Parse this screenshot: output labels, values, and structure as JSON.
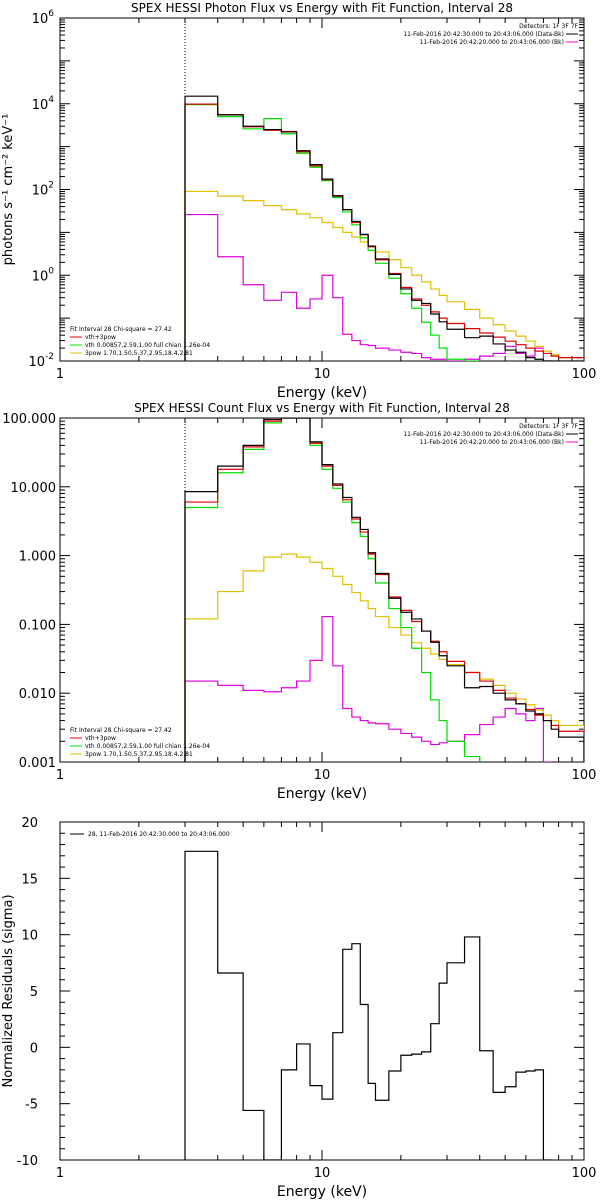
{
  "chart_data": [
    {
      "type": "line",
      "title": "SPEX HESSI Photon Flux vs Energy with Fit Function, Interval 28",
      "xlabel": "Energy (keV)",
      "ylabel": "photons s⁻¹ cm⁻² keV⁻¹",
      "xscale": "log",
      "yscale": "log",
      "xlim": [
        1,
        100
      ],
      "ylim": [
        0.01,
        1000000
      ],
      "x_ticks": [
        "1",
        "10",
        "100"
      ],
      "y_ticks": [
        {
          "base": "10",
          "exp": "6",
          "value": 1000000
        },
        {
          "base": "10",
          "exp": "4",
          "value": 10000
        },
        {
          "base": "10",
          "exp": "2",
          "value": 100
        },
        {
          "base": "10",
          "exp": "0",
          "value": 1
        },
        {
          "base": "10",
          "exp": "-2",
          "value": 0.01
        }
      ],
      "fit_range_start_keV": 3,
      "legend_top": {
        "header": "Detectors: 1F 3F 7F",
        "entries": [
          {
            "text": "11-Feb-2016 20:42:30.000 to 20:43:06.000 (Data-Bk)",
            "color": "#000000"
          },
          {
            "text": "11-Feb-2016 20:42:20.000 to 20:43:06.000 (Bk)",
            "color": "#e000e0"
          }
        ]
      },
      "legend_bottom": {
        "header": "Fit Interval 28   Chi-square = 27.42",
        "entries": [
          {
            "text": "vth+3pow",
            "color": "#e00000"
          },
          {
            "text": "vth 0.00857,2.59,1.00  full chian 1.26e-04",
            "color": "#00e000"
          },
          {
            "text": "3pow 1.70,1.50,5.37,2.95,18.4,2.81",
            "color": "#e0c000"
          }
        ]
      },
      "series": [
        {
          "role": "data",
          "color": "#000000",
          "edges": [
            3,
            4,
            5,
            6,
            7,
            8,
            9,
            10,
            11,
            12,
            13,
            14,
            15,
            16,
            18,
            20,
            22,
            24,
            26,
            28,
            30,
            35,
            40,
            45,
            50,
            55,
            60,
            65,
            70,
            75,
            80,
            100
          ],
          "values": [
            15000,
            5500,
            3000,
            2500,
            2200,
            800,
            380,
            175,
            70,
            34,
            18,
            9,
            4.8,
            2.4,
            1.05,
            0.48,
            0.26,
            0.22,
            0.125,
            0.082,
            0.055,
            0.035,
            0.038,
            0.025,
            0.018,
            0.016,
            0.012,
            0.011,
            0.01,
            0.01,
            0.01
          ]
        },
        {
          "role": "total fit",
          "color": "#e00000",
          "edges": [
            3,
            4,
            5,
            6,
            7,
            8,
            9,
            10,
            11,
            12,
            13,
            14,
            15,
            16,
            18,
            20,
            22,
            24,
            26,
            28,
            30,
            35,
            40,
            45,
            50,
            55,
            60,
            65,
            70,
            75,
            80,
            100
          ],
          "values": [
            9800,
            5600,
            2900,
            2400,
            2250,
            760,
            355,
            170,
            72,
            34,
            17,
            8.8,
            4.6,
            2.3,
            1.1,
            0.52,
            0.28,
            0.2,
            0.14,
            0.1,
            0.075,
            0.057,
            0.045,
            0.036,
            0.029,
            0.024,
            0.02,
            0.017,
            0.015,
            0.013,
            0.012
          ]
        },
        {
          "role": "thermal",
          "color": "#00e000",
          "edges": [
            3,
            4,
            5,
            6,
            7,
            8,
            9,
            10,
            11,
            12,
            13,
            14,
            15,
            16,
            18,
            20,
            22,
            24,
            26,
            28,
            30,
            35,
            40
          ],
          "values": [
            9500,
            5000,
            2600,
            4500,
            2000,
            700,
            330,
            160,
            65,
            30,
            15,
            7.5,
            3.8,
            1.9,
            0.85,
            0.37,
            0.17,
            0.08,
            0.04,
            0.02,
            0.011,
            0.0095
          ]
        },
        {
          "role": "power law",
          "color": "#e0c000",
          "edges": [
            3,
            4,
            5,
            6,
            7,
            8,
            9,
            10,
            11,
            12,
            13,
            14,
            15,
            16,
            18,
            20,
            22,
            24,
            26,
            28,
            30,
            35,
            40,
            45,
            50,
            55,
            60,
            65,
            70,
            75,
            80,
            100
          ],
          "values": [
            90,
            70,
            55,
            42,
            34,
            27,
            22,
            17,
            13,
            10,
            7.8,
            6,
            4.6,
            3.5,
            2.3,
            1.5,
            1.0,
            0.7,
            0.48,
            0.34,
            0.24,
            0.16,
            0.1,
            0.07,
            0.05,
            0.038,
            0.029,
            0.022,
            0.017,
            0.014,
            0.012
          ]
        },
        {
          "role": "background",
          "color": "#e000e0",
          "edges": [
            3,
            4,
            5,
            6,
            7,
            8,
            9,
            10,
            11,
            12,
            13,
            14,
            15,
            16,
            18,
            20,
            22,
            24,
            26,
            28,
            30,
            35,
            40,
            45,
            50,
            55,
            60,
            65,
            70,
            75
          ],
          "values": [
            26,
            2.7,
            0.6,
            0.26,
            0.4,
            0.17,
            0.28,
            1.0,
            0.3,
            0.042,
            0.03,
            0.024,
            0.023,
            0.02,
            0.018,
            0.016,
            0.015,
            0.012,
            0.011,
            0.011,
            0.01,
            0.011,
            0.013,
            0.015,
            0.022,
            0.015,
            0.013,
            0.02,
            0.01
          ]
        }
      ]
    },
    {
      "type": "line",
      "title": "SPEX HESSI Count Flux vs Energy with Fit Function, Interval 28",
      "xlabel": "Energy (keV)",
      "ylabel": "",
      "xscale": "log",
      "yscale": "log",
      "xlim": [
        1,
        100
      ],
      "ylim": [
        0.001,
        100
      ],
      "x_ticks": [
        "1",
        "10",
        "100"
      ],
      "y_ticks": [
        {
          "label": "100.000",
          "value": 100
        },
        {
          "label": "10.000",
          "value": 10
        },
        {
          "label": "1.000",
          "value": 1
        },
        {
          "label": "0.100",
          "value": 0.1
        },
        {
          "label": "0.010",
          "value": 0.01
        },
        {
          "label": "0.001",
          "value": 0.001
        }
      ],
      "fit_range_start_keV": 3,
      "legend_top": {
        "header": "Detectors: 1F 3F 7F",
        "entries": [
          {
            "text": "11-Feb-2016 20:42:30.000 to 20:43:06.000 (Data-Bk)",
            "color": "#000000"
          },
          {
            "text": "11-Feb-2016 20:42:20.000 to 20:43:06.000 (Bk)",
            "color": "#e000e0"
          }
        ]
      },
      "legend_bottom": {
        "header": "Fit Interval 28   Chi-square = 27.42",
        "entries": [
          {
            "text": "vth+3pow",
            "color": "#e00000"
          },
          {
            "text": "vth 0.00857,2.59,1.00  full chian 1.26e-04",
            "color": "#00e000"
          },
          {
            "text": "3pow 1.70,1.50,5.37,2.95,18.4,2.81",
            "color": "#e0c000"
          }
        ]
      },
      "series": [
        {
          "role": "data",
          "color": "#000000",
          "edges": [
            3,
            4,
            5,
            6,
            7,
            8,
            9,
            10,
            11,
            12,
            13,
            14,
            15,
            16,
            18,
            20,
            22,
            24,
            26,
            28,
            30,
            35,
            40,
            45,
            50,
            55,
            60,
            65,
            70,
            75,
            80,
            100
          ],
          "values": [
            8.5,
            20,
            40,
            95,
            100,
            100,
            45,
            21,
            11,
            7,
            3.6,
            2.4,
            1.1,
            0.55,
            0.24,
            0.15,
            0.12,
            0.08,
            0.055,
            0.035,
            0.025,
            0.012,
            0.0125,
            0.01,
            0.008,
            0.007,
            0.0055,
            0.005,
            0.004,
            0.003,
            0.0023
          ]
        },
        {
          "role": "total fit",
          "color": "#e00000",
          "edges": [
            3,
            4,
            5,
            6,
            7,
            8,
            9,
            10,
            11,
            12,
            13,
            14,
            15,
            16,
            18,
            20,
            22,
            24,
            26,
            28,
            30,
            35,
            40,
            45,
            50,
            55,
            60,
            65,
            70,
            75,
            80,
            100
          ],
          "values": [
            6,
            18,
            38,
            90,
            100,
            100,
            43,
            20,
            10.5,
            6.5,
            3.4,
            2.2,
            1.05,
            0.53,
            0.25,
            0.16,
            0.11,
            0.08,
            0.057,
            0.04,
            0.029,
            0.02,
            0.015,
            0.011,
            0.0085,
            0.007,
            0.0058,
            0.0048,
            0.004,
            0.0034,
            0.0028
          ]
        },
        {
          "role": "thermal",
          "color": "#00e000",
          "edges": [
            3,
            4,
            5,
            6,
            7,
            8,
            9,
            10,
            11,
            12,
            13,
            14,
            15,
            16,
            18,
            20,
            22,
            24,
            26,
            28,
            30,
            35,
            40
          ],
          "values": [
            5,
            16,
            35,
            85,
            100,
            100,
            40,
            18,
            9.5,
            6,
            3,
            1.9,
            0.9,
            0.4,
            0.17,
            0.09,
            0.045,
            0.02,
            0.008,
            0.004,
            0.002,
            0.0012
          ]
        },
        {
          "role": "power law",
          "color": "#e0c000",
          "edges": [
            3,
            4,
            5,
            6,
            7,
            8,
            9,
            10,
            11,
            12,
            13,
            14,
            15,
            16,
            18,
            20,
            22,
            24,
            26,
            28,
            30,
            35,
            40,
            45,
            50,
            55,
            60,
            65,
            70,
            75,
            80,
            100
          ],
          "values": [
            0.12,
            0.3,
            0.6,
            0.95,
            1.05,
            0.95,
            0.8,
            0.65,
            0.5,
            0.38,
            0.29,
            0.22,
            0.17,
            0.13,
            0.09,
            0.07,
            0.054,
            0.045,
            0.037,
            0.031,
            0.026,
            0.02,
            0.016,
            0.013,
            0.01,
            0.0082,
            0.0068,
            0.0057,
            0.0048,
            0.004,
            0.0034
          ]
        },
        {
          "role": "background",
          "color": "#e000e0",
          "edges": [
            3,
            4,
            5,
            6,
            7,
            8,
            9,
            10,
            11,
            12,
            13,
            14,
            15,
            16,
            18,
            20,
            22,
            24,
            26,
            28,
            30,
            35,
            40,
            45,
            50,
            55,
            60,
            65,
            70,
            75
          ],
          "values": [
            0.015,
            0.013,
            0.011,
            0.0105,
            0.012,
            0.015,
            0.03,
            0.13,
            0.025,
            0.006,
            0.0045,
            0.004,
            0.0037,
            0.0036,
            0.003,
            0.0026,
            0.0023,
            0.002,
            0.0018,
            0.0019,
            0.002,
            0.0025,
            0.0035,
            0.0045,
            0.006,
            0.005,
            0.004,
            0.006,
            0.0009
          ]
        }
      ]
    },
    {
      "type": "line",
      "title": "",
      "xlabel": "Energy (keV)",
      "ylabel": "Normalized Residuals (sigma)",
      "xscale": "log",
      "yscale": "linear",
      "xlim": [
        1,
        100
      ],
      "ylim": [
        -10,
        20
      ],
      "x_ticks": [
        "1",
        "10",
        "100"
      ],
      "y_ticks": [
        "20",
        "15",
        "10",
        "5",
        "0",
        "-5",
        "-10"
      ],
      "legend": [
        {
          "text": "28, 11-Feb-2016 20:42:30.000 to 20:43:06.000",
          "color": "#000000"
        }
      ],
      "series": [
        {
          "role": "residuals",
          "color": "#000000",
          "edges": [
            3,
            4,
            5,
            6,
            7,
            8,
            9,
            10,
            11,
            12,
            13,
            14,
            15,
            16,
            18,
            20,
            22,
            24,
            26,
            28,
            30,
            35,
            40,
            45,
            50,
            55,
            60,
            65,
            70,
            75
          ],
          "values": [
            17.4,
            6.6,
            -5.6,
            -10.0,
            -2.0,
            0.3,
            -3.4,
            -4.6,
            1.3,
            8.7,
            9.2,
            3.8,
            -3.2,
            -4.7,
            -2.1,
            -0.7,
            -0.6,
            -0.4,
            2.1,
            5.7,
            7.5,
            9.8,
            -0.3,
            -4.0,
            -3.5,
            -2.2,
            -2.1,
            -2.0,
            -10.0
          ]
        }
      ]
    }
  ]
}
